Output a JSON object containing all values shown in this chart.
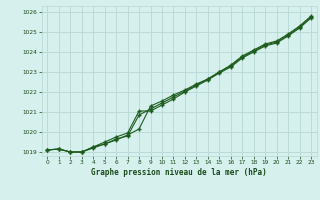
{
  "title": "Graphe pression niveau de la mer (hPa)",
  "bg_color": "#d6f0ee",
  "grid_color": "#b8d8d4",
  "line_color": "#1e5c1e",
  "marker_color": "#1e5c1e",
  "text_color": "#1a4a1a",
  "x_ticks": [
    0,
    1,
    2,
    3,
    4,
    5,
    6,
    7,
    8,
    9,
    10,
    11,
    12,
    13,
    14,
    15,
    16,
    17,
    18,
    19,
    20,
    21,
    22,
    23
  ],
  "ylim": [
    1018.8,
    1026.3
  ],
  "yticks": [
    1019,
    1020,
    1021,
    1022,
    1023,
    1024,
    1025,
    1026
  ],
  "series1": [
    1019.1,
    1019.15,
    1019.0,
    1019.0,
    1019.25,
    1019.4,
    1019.65,
    1019.8,
    1020.85,
    1021.15,
    1021.45,
    1021.75,
    1022.05,
    1022.35,
    1022.65,
    1023.0,
    1023.3,
    1023.75,
    1024.05,
    1024.35,
    1024.5,
    1024.85,
    1025.25,
    1025.75
  ],
  "series2": [
    1019.1,
    1019.15,
    1019.0,
    1019.0,
    1019.25,
    1019.5,
    1019.75,
    1019.95,
    1021.05,
    1021.05,
    1021.35,
    1021.65,
    1022.0,
    1022.3,
    1022.6,
    1022.95,
    1023.25,
    1023.7,
    1024.0,
    1024.3,
    1024.45,
    1024.8,
    1025.2,
    1025.7
  ],
  "series3": [
    1019.1,
    1019.15,
    1019.0,
    1019.0,
    1019.2,
    1019.4,
    1019.6,
    1019.85,
    1020.15,
    1021.3,
    1021.55,
    1021.85,
    1022.1,
    1022.4,
    1022.65,
    1023.0,
    1023.35,
    1023.8,
    1024.1,
    1024.4,
    1024.55,
    1024.9,
    1025.3,
    1025.8
  ]
}
